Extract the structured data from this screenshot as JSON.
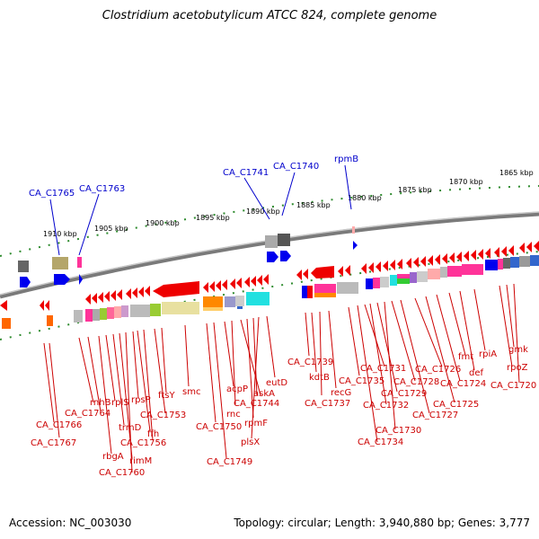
{
  "title": "Clostridium acetobutylicum ATCC 824, complete genome",
  "accession_text": "Accession: NC_003030",
  "info_text": "Topology: circular; Length: 3,940,880 bp; Genes: 3,777",
  "scale_labels": [
    "1910 kbp",
    "1905 kbp",
    "1900 kbp",
    "1895 kbp",
    "1890 kbp",
    "1885 kbp",
    "1880 kbp",
    "1875 kbp",
    "1870 kbp",
    "1865 kbp"
  ],
  "top_labels": [
    "CA_C1765",
    "CA_C1763",
    "CA_C1741",
    "CA_C1740",
    "rpmB"
  ],
  "bottom_labels": [
    "rnhB",
    "CA_C1764",
    "CA_C1766",
    "CA_C1767",
    "rbgA",
    "rplS",
    "trmD",
    "rimM",
    "CA_C1760",
    "rpsP",
    "ffh",
    "CA_C1756",
    "CA_C1753",
    "ftsY",
    "smc",
    "CA_C1750",
    "CA_C1749",
    "acpP",
    "rnc",
    "askA",
    "CA_C1744",
    "rpmF",
    "plsX",
    "eutD",
    "CA_C1739",
    "kdtB",
    "recG",
    "CA_C1737",
    "CA_C1735",
    "CA_C1731",
    "CA_C1732",
    "CA_C1734",
    "CA_C1729",
    "CA_C1730",
    "CA_C1728",
    "CA_C1726",
    "CA_C1727",
    "CA_C1725",
    "CA_C1724",
    "fmt",
    "def",
    "rpiA",
    "rpoZ",
    "gmk",
    "CA_C1720"
  ]
}
